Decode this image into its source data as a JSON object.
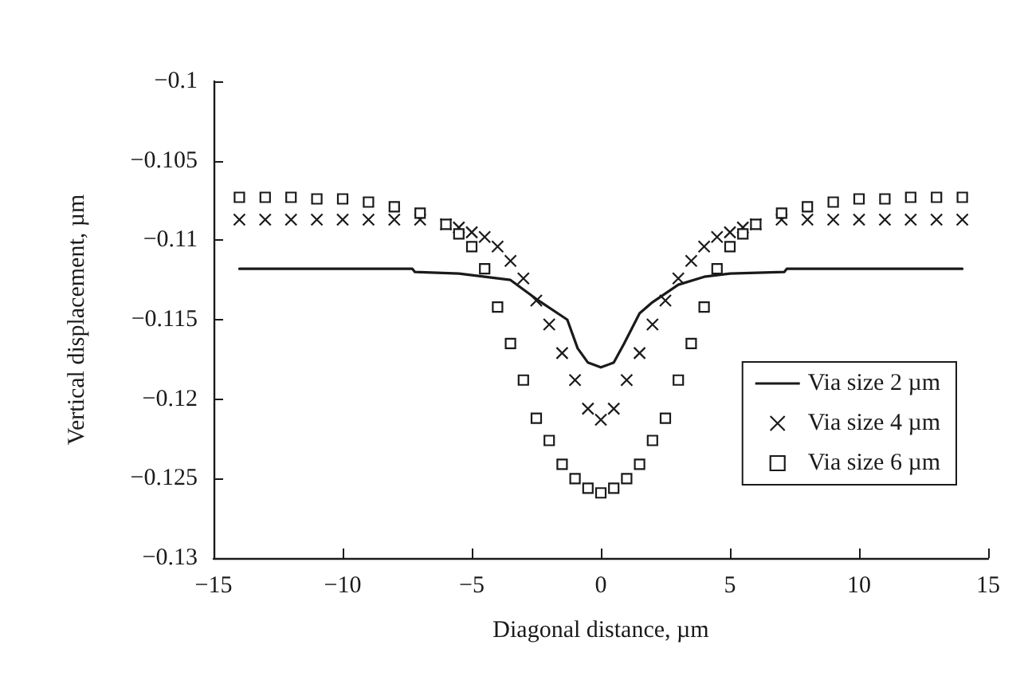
{
  "chart_data": {
    "type": "line",
    "xlabel": "Diagonal distance, µm",
    "ylabel": "Vertical displacement, µm",
    "xlim": [
      -15,
      15
    ],
    "xticks": [
      {
        "value": -15,
        "label": "−15"
      },
      {
        "value": -10,
        "label": "−10"
      },
      {
        "value": -5,
        "label": "−5"
      },
      0,
      5,
      10,
      15
    ],
    "ylim": [
      -0.13,
      -0.1
    ],
    "yticks": [
      {
        "value": -0.13,
        "label": "−0.13"
      },
      {
        "value": -0.125,
        "label": "−0.125"
      },
      {
        "value": -0.12,
        "label": "−0.12"
      },
      {
        "value": -0.115,
        "label": "−0.115"
      },
      {
        "value": -0.11,
        "label": "−0.11"
      },
      {
        "value": -0.105,
        "label": "−0.105"
      },
      {
        "value": -0.1,
        "label": "−0.1"
      }
    ],
    "grid": false,
    "legend": "bottom right",
    "series": [
      {
        "name": "Via size 2 µm",
        "type": "line",
        "marker": "none",
        "color": "#1a1a1a",
        "x": [
          -14,
          -7.3,
          -7.2,
          -5.5,
          -3.5,
          -2.5,
          -1.3,
          -0.9,
          -0.5,
          0,
          0.5,
          0.9,
          1.5,
          2,
          3,
          4,
          5,
          7.1,
          7.2,
          14
        ],
        "values": [
          -0.1118,
          -0.1118,
          -0.112,
          -0.1121,
          -0.1125,
          -0.1137,
          -0.115,
          -0.1168,
          -0.1177,
          -0.118,
          -0.1177,
          -0.1165,
          -0.1146,
          -0.1139,
          -0.1128,
          -0.1123,
          -0.1121,
          -0.112,
          -0.1118,
          -0.1118
        ]
      },
      {
        "name": "Via size 4 µm",
        "type": "scatter",
        "marker": "cross",
        "color": "#1a1a1a",
        "x": [
          -14,
          -13,
          -12,
          -11,
          -10,
          -9,
          -8,
          -7,
          -6,
          -5.5,
          -5,
          -4.5,
          -4,
          -3.5,
          -3,
          -2.5,
          -2,
          -1.5,
          -1,
          -0.5,
          0,
          0.5,
          1,
          1.5,
          2,
          2.5,
          3,
          3.5,
          4,
          4.5,
          5,
          5.5,
          6,
          7,
          8,
          9,
          10,
          11,
          12,
          13,
          14
        ],
        "values": [
          -0.1087,
          -0.1087,
          -0.1087,
          -0.1087,
          -0.1087,
          -0.1087,
          -0.1087,
          -0.1087,
          -0.109,
          -0.1092,
          -0.1095,
          -0.1098,
          -0.1104,
          -0.1113,
          -0.1124,
          -0.1138,
          -0.1153,
          -0.1171,
          -0.1188,
          -0.1206,
          -0.1213,
          -0.1206,
          -0.1188,
          -0.1171,
          -0.1153,
          -0.1138,
          -0.1124,
          -0.1113,
          -0.1104,
          -0.1098,
          -0.1095,
          -0.1092,
          -0.109,
          -0.1087,
          -0.1087,
          -0.1087,
          -0.1087,
          -0.1087,
          -0.1087,
          -0.1087,
          -0.1087
        ]
      },
      {
        "name": "Via size 6 µm",
        "type": "scatter",
        "marker": "square",
        "color": "#1a1a1a",
        "x": [
          -14,
          -13,
          -12,
          -11,
          -10,
          -9,
          -8,
          -7,
          -6,
          -5.5,
          -5,
          -4.5,
          -4,
          -3.5,
          -3,
          -2.5,
          -2,
          -1.5,
          -1,
          -0.5,
          0,
          0.5,
          1,
          1.5,
          2,
          2.5,
          3,
          3.5,
          4,
          4.5,
          5,
          5.5,
          6,
          7,
          8,
          9,
          10,
          11,
          12,
          13,
          14
        ],
        "values": [
          -0.1073,
          -0.1073,
          -0.1073,
          -0.1074,
          -0.1074,
          -0.1076,
          -0.1079,
          -0.1083,
          -0.109,
          -0.1096,
          -0.1104,
          -0.1118,
          -0.1142,
          -0.1165,
          -0.1188,
          -0.1212,
          -0.1226,
          -0.1241,
          -0.125,
          -0.1256,
          -0.1259,
          -0.1256,
          -0.125,
          -0.1241,
          -0.1226,
          -0.1212,
          -0.1188,
          -0.1165,
          -0.1142,
          -0.1118,
          -0.1104,
          -0.1096,
          -0.109,
          -0.1083,
          -0.1079,
          -0.1076,
          -0.1074,
          -0.1074,
          -0.1073,
          -0.1073,
          -0.1073
        ]
      }
    ]
  }
}
